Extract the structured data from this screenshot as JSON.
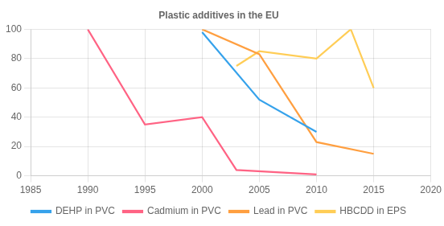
{
  "chart_data": {
    "type": "line",
    "title": "Plastic additives in the EU",
    "series": [
      {
        "name": "DEHP in PVC",
        "x": [
          2000,
          2005,
          2010
        ],
        "values": [
          98,
          52,
          30
        ]
      },
      {
        "name": "Cadmium in PVC",
        "x": [
          1990,
          1995,
          2000,
          2003,
          2010
        ],
        "values": [
          100,
          35,
          40,
          4,
          1
        ]
      },
      {
        "name": "Lead in PVC",
        "x": [
          2000,
          2005,
          2010,
          2015
        ],
        "values": [
          100,
          83,
          23,
          15
        ]
      },
      {
        "name": "HBCDD in EPS",
        "x": [
          2003,
          2005,
          2010,
          2013,
          2015
        ],
        "values": [
          75,
          85,
          80,
          100,
          60
        ]
      }
    ],
    "xlim": [
      1985,
      2020
    ],
    "xticks": [
      1985,
      1990,
      1995,
      2000,
      2005,
      2010,
      2015,
      2020
    ],
    "ylim": [
      0,
      100
    ],
    "yticks": [
      0,
      20,
      40,
      60,
      80,
      100
    ],
    "grid": true,
    "legend": "bottom"
  }
}
